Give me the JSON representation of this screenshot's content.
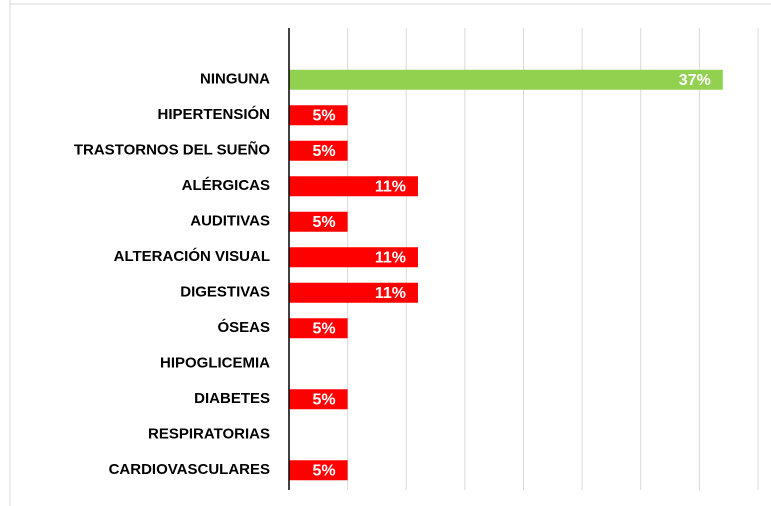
{
  "chart_data": {
    "type": "bar",
    "orientation": "horizontal",
    "categories": [
      "NINGUNA",
      "HIPERTENSIÓN",
      "TRASTORNOS DEL SUEÑO",
      "ALÉRGICAS",
      "AUDITIVAS",
      "ALTERACIÓN VISUAL",
      "DIGESTIVAS",
      "ÓSEAS",
      "HIPOGLICEMIA",
      "DIABETES",
      "RESPIRATORIAS",
      "CARDIOVASCULARES"
    ],
    "values": [
      37,
      5,
      5,
      11,
      5,
      11,
      11,
      5,
      0,
      5,
      0,
      5
    ],
    "value_labels": [
      "37%",
      "5%",
      "5%",
      "11%",
      "5%",
      "11%",
      "11%",
      "5%",
      null,
      "5%",
      null,
      "5%"
    ],
    "colors": [
      "#92d050",
      "#ff0000",
      "#ff0000",
      "#ff0000",
      "#ff0000",
      "#ff0000",
      "#ff0000",
      "#ff0000",
      "#ff0000",
      "#ff0000",
      "#ff0000",
      "#ff0000"
    ],
    "xlim": [
      0,
      40
    ],
    "xticks": [
      0,
      5,
      10,
      15,
      20,
      25,
      30,
      35,
      40
    ],
    "grid": true
  }
}
